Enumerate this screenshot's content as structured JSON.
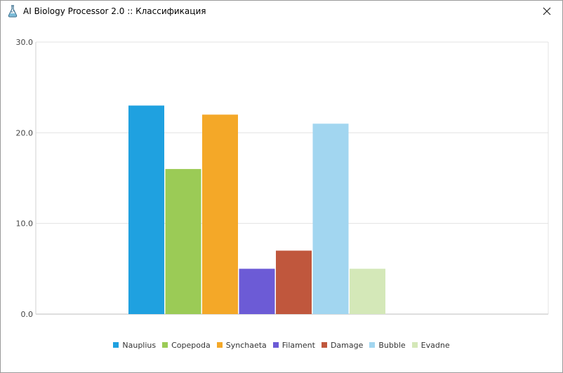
{
  "window": {
    "title": "AI Biology Processor 2.0 :: Классификация",
    "app_icon": "flask-icon",
    "close_icon": "close-icon"
  },
  "chart_data": {
    "type": "bar",
    "categories": [
      "Nauplius",
      "Copepoda",
      "Synchaeta",
      "Filament",
      "Damage",
      "Bubble",
      "Evadne"
    ],
    "values": [
      23,
      16,
      22,
      5,
      7,
      21,
      5
    ],
    "colors": [
      "#1fa1e0",
      "#9bcb56",
      "#f4a828",
      "#6c5bd6",
      "#c0573d",
      "#a2d6f0",
      "#d4e8b8"
    ],
    "ylim": [
      0,
      30
    ],
    "yticks": [
      "0.0",
      "10.0",
      "20.0",
      "30.0"
    ],
    "grid": true,
    "legend_position": "bottom-center"
  }
}
